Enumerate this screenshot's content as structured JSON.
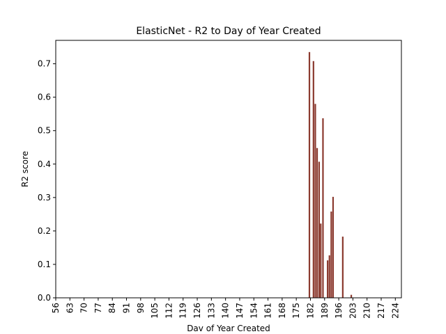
{
  "chart_data": {
    "type": "bar",
    "title": "ElasticNet - R2 to Day of Year Created",
    "xlabel": "Dav of Year Created",
    "ylabel": "R2 score",
    "xlim": [
      56,
      227
    ],
    "ylim": [
      0.0,
      0.77
    ],
    "xticks": [
      56,
      63,
      70,
      77,
      84,
      91,
      98,
      105,
      112,
      119,
      126,
      133,
      140,
      147,
      154,
      161,
      168,
      175,
      182,
      189,
      196,
      203,
      210,
      217,
      224
    ],
    "yticks": [
      0.0,
      0.1,
      0.2,
      0.3,
      0.4,
      0.5,
      0.6,
      0.7
    ],
    "bar_color": "#8b3a2f",
    "grid": false,
    "legend": "none",
    "bars": [
      {
        "x": 181.5,
        "value": 0.735
      },
      {
        "x": 183.5,
        "value": 0.708
      },
      {
        "x": 184.4,
        "value": 0.58
      },
      {
        "x": 185.3,
        "value": 0.448
      },
      {
        "x": 186.3,
        "value": 0.407
      },
      {
        "x": 187.1,
        "value": 0.222
      },
      {
        "x": 188.2,
        "value": 0.537
      },
      {
        "x": 190.5,
        "value": 0.112
      },
      {
        "x": 191.4,
        "value": 0.127
      },
      {
        "x": 192.3,
        "value": 0.258
      },
      {
        "x": 193.2,
        "value": 0.302
      },
      {
        "x": 198.0,
        "value": 0.183
      },
      {
        "x": 202.2,
        "value": 0.009
      }
    ]
  }
}
